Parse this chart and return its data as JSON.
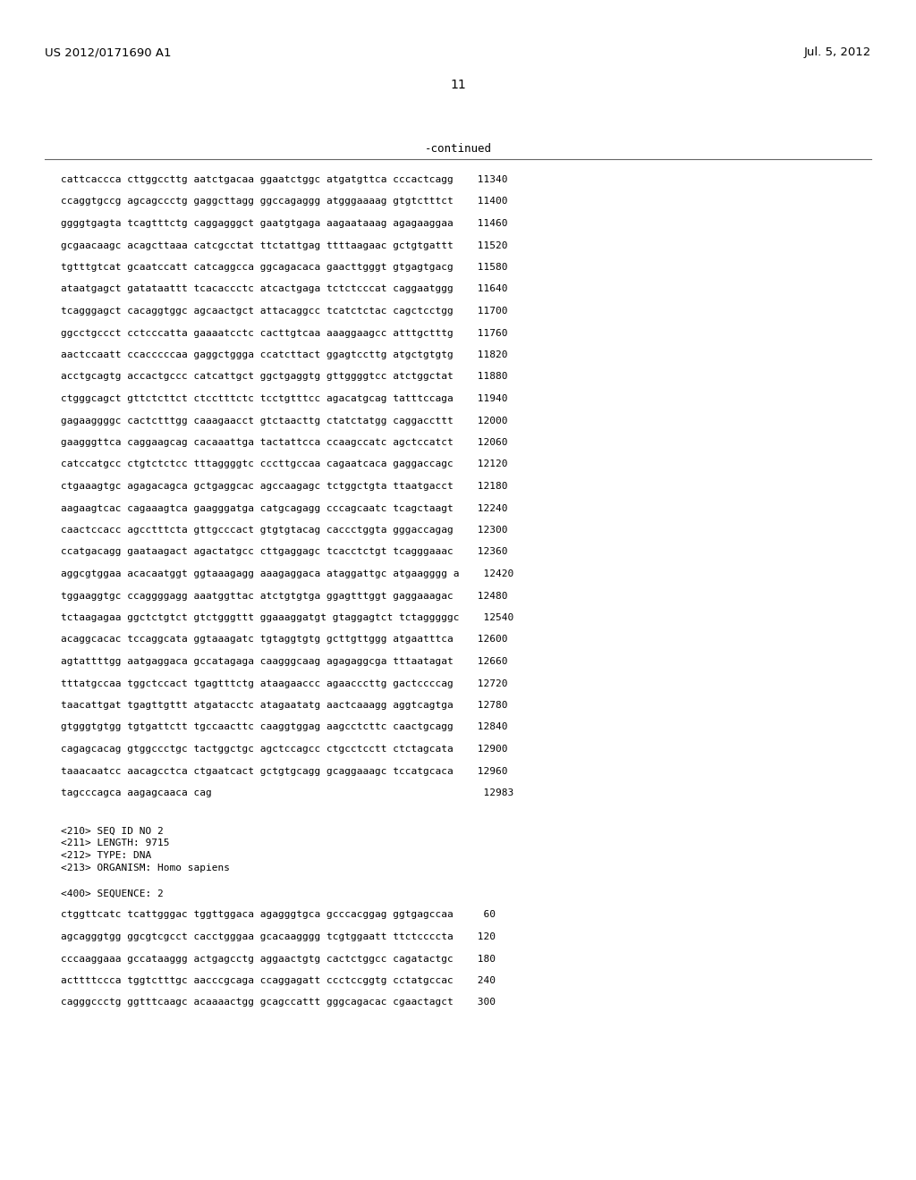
{
  "header_left": "US 2012/0171690 A1",
  "header_right": "Jul. 5, 2012",
  "page_number": "11",
  "continued_label": "-continued",
  "background_color": "#ffffff",
  "text_color": "#000000",
  "sequence_lines": [
    "cattcaccca cttggccttg aatctgacaa ggaatctggc atgatgttca cccactcagg    11340",
    "ccaggtgccg agcagccctg gaggcttagg ggccagaggg atgggaaaag gtgtctttct    11400",
    "ggggtgagta tcagtttctg caggagggct gaatgtgaga aagaataaag agagaaggaa    11460",
    "gcgaacaagc acagcttaaa catcgcctat ttctattgag ttttaagaac gctgtgattt    11520",
    "tgtttgtcat gcaatccatt catcaggcca ggcagacaca gaacttgggt gtgagtgacg    11580",
    "ataatgagct gatataattt tcacaccctc atcactgaga tctctcccat caggaatggg    11640",
    "tcagggagct cacaggtggc agcaactgct attacaggcc tcatctctac cagctcctgg    11700",
    "ggcctgccct cctcccatta gaaaatcctc cacttgtcaa aaaggaagcc atttgctttg    11760",
    "aactccaatt ccacccccaa gaggctggga ccatcttact ggagtccttg atgctgtgtg    11820",
    "acctgcagtg accactgccc catcattgct ggctgaggtg gttggggtcc atctggctat    11880",
    "ctgggcagct gttctcttct ctcctttctc tcctgtttcc agacatgcag tatttccaga    11940",
    "gagaaggggc cactctttgg caaagaacct gtctaacttg ctatctatgg caggaccttt    12000",
    "gaagggttca caggaagcag cacaaattga tactattcca ccaagccatc agctccatct    12060",
    "catccatgcc ctgtctctcc tttaggggtc cccttgccaa cagaatcaca gaggaccagc    12120",
    "ctgaaagtgc agagacagca gctgaggcac agccaagagc tctggctgta ttaatgacct    12180",
    "aagaagtcac cagaaagtca gaagggatga catgcagagg cccagcaatc tcagctaagt    12240",
    "caactccacc agcctttcta gttgcccact gtgtgtacag caccctggta gggaccagag    12300",
    "ccatgacagg gaataagact agactatgcc cttgaggagc tcacctctgt tcagggaaac    12360",
    "aggcgtggaa acacaatggt ggtaaagagg aaagaggaca ataggattgc atgaagggg a    12420",
    "tggaaggtgc ccaggggagg aaatggttac atctgtgtga ggagtttggt gaggaaagac    12480",
    "tctaagagaa ggctctgtct gtctgggttt ggaaaggatgt gtaggagtct tctagggggc    12540",
    "acaggcacac tccaggcata ggtaaagatc tgtaggtgtg gcttgttggg atgaatttca    12600",
    "agtattttgg aatgaggaca gccatagaga caagggcaag agagaggcga tttaatagat    12660",
    "tttatgccaa tggctccact tgagtttctg ataagaaccc agaacccttg gactccccag    12720",
    "taacattgat tgagttgttt atgatacctc atagaatatg aactcaaagg aggtcagtga    12780",
    "gtgggtgtgg tgtgattctt tgccaacttc caaggtggag aagcctcttc caactgcagg    12840",
    "cagagcacag gtggccctgc tactggctgc agctccagcc ctgcctcctt ctctagcata    12900",
    "taaacaatcc aacagcctca ctgaatcact gctgtgcagg gcaggaaagc tccatgcaca    12960",
    "tagcccagca aagagcaaca cag                                             12983"
  ],
  "metadata_lines": [
    "<210> SEQ ID NO 2",
    "<211> LENGTH: 9715",
    "<212> TYPE: DNA",
    "<213> ORGANISM: Homo sapiens",
    "",
    "<400> SEQUENCE: 2"
  ],
  "sequence2_lines": [
    "ctggttcatc tcattgggac tggttggaca agagggtgca gcccacggag ggtgagccaa     60",
    "agcagggtgg ggcgtcgcct cacctgggaa gcacaagggg tcgtggaatt ttctccccta    120",
    "cccaaggaaa gccataaggg actgagcctg aggaactgtg cactctggcc cagatactgc    180",
    "acttttccca tggtctttgc aacccgcaga ccaggagatt ccctccggtg cctatgccac    240",
    "cagggccctg ggtttcaagc acaaaactgg gcagccattt gggcagacac cgaactagct    300"
  ]
}
